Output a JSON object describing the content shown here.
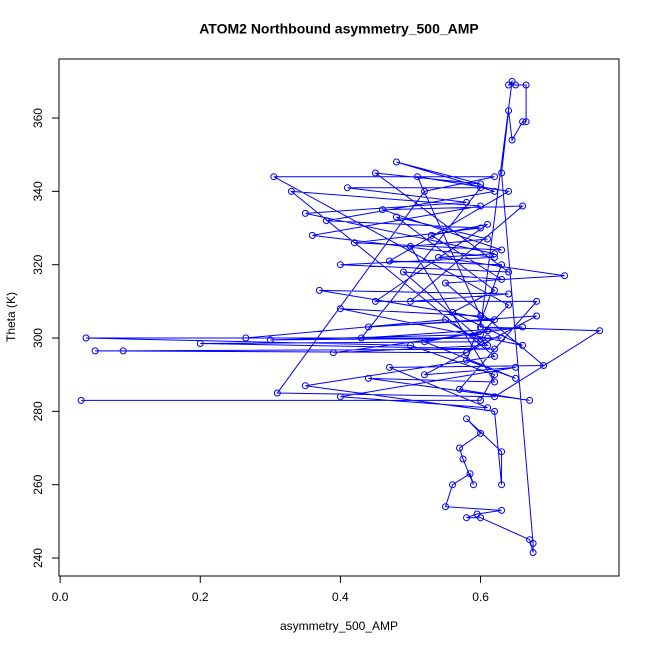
{
  "chart_data": {
    "type": "line",
    "title": "ATOM2 Northbound asymmetry_500_AMP",
    "x_label": "asymmetry_500_AMP",
    "y_label": "Theta (K)",
    "color": "blue",
    "markers": true,
    "xlim": [
      -0.0016,
      0.7976
    ],
    "ylim": [
      235.1,
      376.1
    ],
    "xticks": [
      {
        "value": 0,
        "label": "0.0"
      },
      0.2,
      0.4,
      0.6
    ],
    "yticks": [
      240,
      260,
      280,
      300,
      320,
      340,
      360
    ],
    "x": [
      0.03,
      0.6,
      0.62,
      0.5,
      0.037,
      0.61,
      0.58,
      0.05,
      0.09,
      0.62,
      0.2,
      0.6,
      0.55,
      0.265,
      0.63,
      0.3,
      0.6,
      0.64,
      0.305,
      0.62,
      0.52,
      0.31,
      0.62,
      0.77,
      0.6,
      0.645,
      0.64,
      0.65,
      0.665,
      0.665,
      0.66,
      0.645,
      0.64,
      0.63,
      0.675,
      0.675,
      0.67,
      0.6,
      0.58,
      0.595,
      0.63,
      0.55,
      0.56,
      0.585,
      0.59,
      0.575,
      0.57,
      0.6,
      0.58,
      0.63,
      0.63,
      0.62,
      0.35,
      0.62,
      0.33,
      0.6,
      0.36,
      0.62,
      0.4,
      0.64,
      0.45,
      0.6,
      0.48,
      0.62,
      0.38,
      0.6,
      0.42,
      0.63,
      0.46,
      0.66,
      0.5,
      0.64,
      0.37,
      0.62,
      0.44,
      0.68,
      0.52,
      0.65,
      0.4,
      0.61,
      0.47,
      0.69,
      0.55,
      0.72,
      0.54,
      0.62,
      0.35,
      0.58,
      0.41,
      0.6,
      0.43,
      0.66,
      0.39,
      0.61,
      0.49,
      0.63,
      0.53,
      0.61,
      0.45,
      0.68,
      0.57,
      0.67,
      0.44,
      0.62,
      0.5,
      0.61,
      0.48,
      0.62,
      0.56,
      0.66,
      0.4,
      0.6,
      0.51,
      0.64,
      0.47,
      0.63,
      0.58,
      0.65,
      0.52,
      0.61
    ],
    "values": [
      283,
      283,
      290,
      298,
      300,
      300,
      296,
      296.5,
      296.5,
      297,
      298.5,
      299,
      305,
      300,
      300,
      299.5,
      301,
      309,
      344,
      344,
      340,
      285,
      284,
      302,
      303,
      370,
      369,
      369,
      369,
      359,
      359,
      354,
      362,
      345,
      244,
      241.5,
      245,
      251,
      251,
      252,
      253,
      254,
      260,
      263,
      260,
      267,
      270,
      274,
      278,
      269,
      260,
      280,
      287,
      295,
      340,
      336,
      328,
      322,
      320,
      318,
      345,
      342,
      348,
      340,
      332,
      330,
      326,
      324,
      335,
      336,
      310,
      312,
      313,
      305,
      303,
      306,
      290,
      292,
      284,
      281,
      292,
      292.5,
      315,
      317,
      322,
      323,
      334,
      337,
      341,
      341,
      300,
      303,
      296,
      298,
      318,
      316,
      328,
      331,
      310,
      310,
      286,
      283,
      289,
      288,
      325,
      327,
      333,
      313,
      307,
      298,
      308,
      306,
      344,
      340,
      321,
      320,
      294,
      289,
      299,
      302
    ]
  }
}
